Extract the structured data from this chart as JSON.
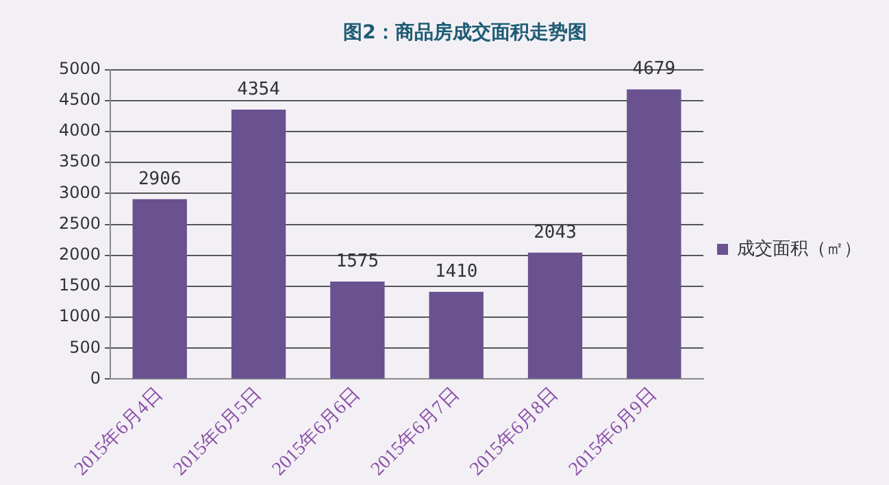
{
  "chart_data": {
    "type": "bar",
    "title": "图2：商品房成交面积走势图",
    "categories": [
      "2015年6月4日",
      "2015年6月5日",
      "2015年6月6日",
      "2015年6月7日",
      "2015年6月8日",
      "2015年6月9日"
    ],
    "series": [
      {
        "name": "成交面积（㎡）",
        "color": "#6a5190",
        "values": [
          2906,
          4354,
          1575,
          1410,
          2043,
          4679
        ]
      }
    ],
    "ylim": [
      0,
      5000
    ],
    "yticks": [
      0,
      500,
      1000,
      1500,
      2000,
      2500,
      3000,
      3500,
      4000,
      4500,
      5000
    ],
    "grid": "y",
    "legend": "right",
    "data_labels": true
  }
}
